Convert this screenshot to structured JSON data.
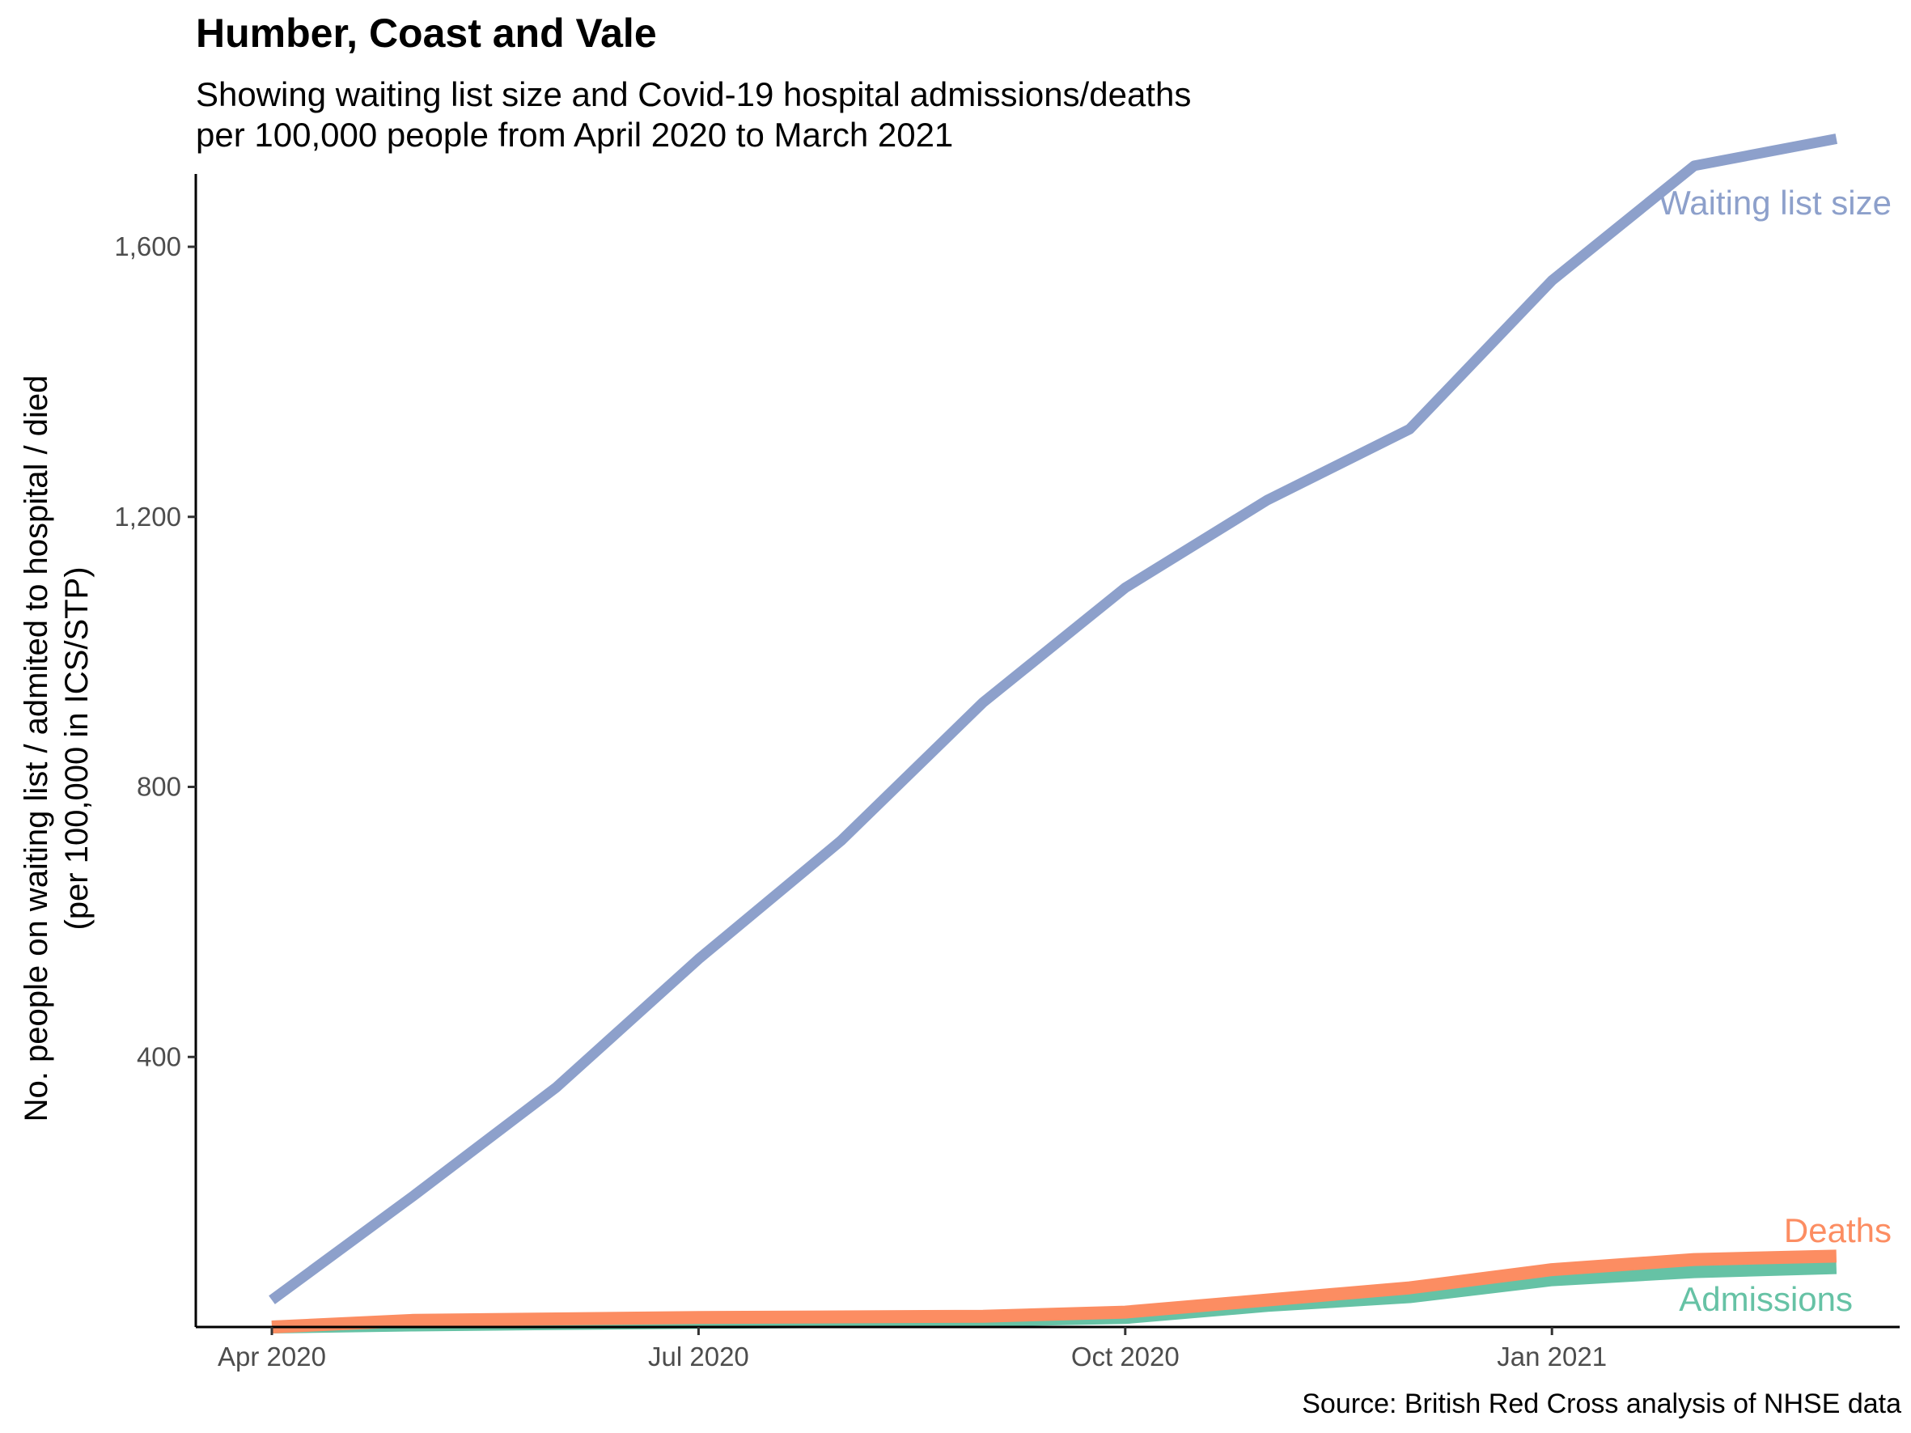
{
  "chart_data": {
    "type": "line",
    "title": "Humber, Coast and Vale",
    "subtitle": "Showing waiting list size and Covid-19 hospital admissions/deaths\nper 100,000 people from April 2020 to March 2021",
    "caption": "Source: British Red Cross analysis of NHSE data",
    "ylabel_line1": "No. people on waiting list / admited to hospital / died",
    "ylabel_line2": "(per 100,000 in ICS/STP)",
    "xlabel": "",
    "x": [
      "2020-04",
      "2020-05",
      "2020-06",
      "2020-07",
      "2020-08",
      "2020-09",
      "2020-10",
      "2020-11",
      "2020-12",
      "2021-01",
      "2021-02",
      "2021-03"
    ],
    "x_ticks": [
      {
        "x": "2020-04",
        "label": "Apr 2020"
      },
      {
        "x": "2020-07",
        "label": "Jul 2020"
      },
      {
        "x": "2020-10",
        "label": "Oct 2020"
      },
      {
        "x": "2021-01",
        "label": "Jan 2021"
      }
    ],
    "y_ticks": [
      {
        "value": 400,
        "label": "400"
      },
      {
        "value": 800,
        "label": "800"
      },
      {
        "value": 1200,
        "label": "1,200"
      },
      {
        "value": 1600,
        "label": "1,600"
      }
    ],
    "ylim": [
      0,
      1710
    ],
    "grid": false,
    "legend": "none",
    "series": [
      {
        "name": "Waiting list size",
        "color": "#8da0cb",
        "values": [
          40,
          195,
          355,
          545,
          720,
          925,
          1095,
          1225,
          1330,
          1550,
          1720,
          1760
        ]
      },
      {
        "name": "Deaths",
        "color": "#fc8d62",
        "values": [
          0,
          10,
          12,
          14,
          15,
          16,
          22,
          40,
          58,
          85,
          100,
          105
        ]
      },
      {
        "name": "Admissions",
        "color": "#66c2a5",
        "values": [
          0,
          3,
          5,
          7,
          8,
          10,
          14,
          32,
          45,
          70,
          82,
          88
        ]
      }
    ]
  }
}
